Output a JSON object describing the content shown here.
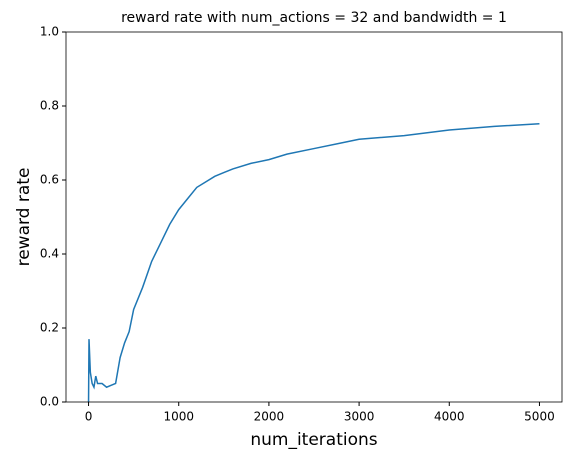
{
  "chart_data": {
    "type": "line",
    "title": "reward rate with num_actions = 32 and bandwidth = 1",
    "x_label": "num_iterations",
    "y_label": "reward rate",
    "x": [
      0,
      5,
      20,
      40,
      60,
      80,
      100,
      150,
      200,
      250,
      300,
      350,
      400,
      450,
      500,
      600,
      700,
      800,
      900,
      1000,
      1100,
      1200,
      1300,
      1400,
      1500,
      1600,
      1800,
      2000,
      2200,
      2500,
      2800,
      3000,
      3500,
      4000,
      4500,
      5000
    ],
    "series": [
      {
        "name": "reward rate",
        "color": "#1f77b4",
        "values": [
          0.0,
          0.17,
          0.08,
          0.05,
          0.04,
          0.07,
          0.05,
          0.05,
          0.04,
          0.045,
          0.05,
          0.12,
          0.16,
          0.19,
          0.25,
          0.31,
          0.38,
          0.43,
          0.48,
          0.52,
          0.55,
          0.58,
          0.595,
          0.61,
          0.62,
          0.63,
          0.645,
          0.655,
          0.67,
          0.685,
          0.7,
          0.71,
          0.72,
          0.735,
          0.745,
          0.752
        ]
      }
    ],
    "xlim": [
      -250,
      5250
    ],
    "xticks": [
      0,
      1000,
      2000,
      3000,
      4000,
      5000
    ],
    "ylim": [
      0,
      1
    ],
    "yticks": [
      {
        "value": 0,
        "label": "0.0"
      },
      0.2,
      0.4,
      0.6,
      0.8,
      {
        "value": 1,
        "label": "1.0"
      }
    ]
  }
}
